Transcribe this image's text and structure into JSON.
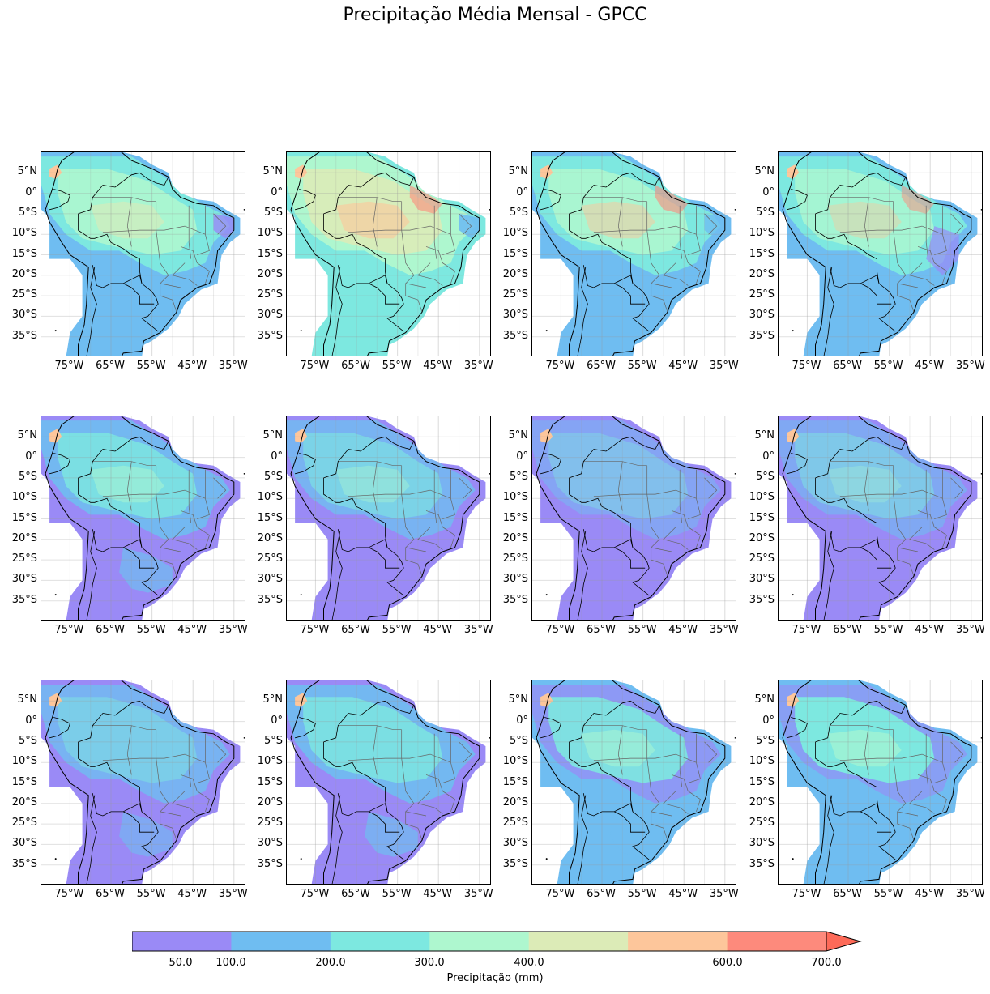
{
  "title": "Precipitação Média Mensal - GPCC",
  "lat_ticks": [
    "5°N",
    "0°",
    "5°S",
    "10°S",
    "15°S",
    "20°S",
    "25°S",
    "30°S",
    "35°S"
  ],
  "lon_ticks": [
    "75°W",
    "65°W",
    "55°W",
    "45°W",
    "35°W"
  ],
  "colorbar": {
    "label": "Precipitação (mm)",
    "tick_labels": [
      "50.0",
      "100.0",
      "200.0",
      "300.0",
      "400.0",
      "600.0",
      "700.0"
    ],
    "colors": [
      "#9a8af6",
      "#6fbdf1",
      "#7de8e0",
      "#aef7cf",
      "#dcebb7",
      "#fdc69b",
      "#fd8a7c",
      "#fd6a58"
    ]
  },
  "panels": [
    {
      "base": "#6fbdf1",
      "zones": [
        [
          0,
          "#7de8e0",
          1.0
        ],
        [
          1,
          "#aef7cf",
          0.9
        ],
        [
          2,
          "#dcebb7",
          0.6
        ],
        [
          4,
          "#9a8af6",
          0.8
        ]
      ]
    },
    {
      "base": "#7de8e0",
      "zones": [
        [
          0,
          "#aef7cf",
          1.0
        ],
        [
          1,
          "#dcebb7",
          0.9
        ],
        [
          2,
          "#fdc69b",
          0.6
        ],
        [
          3,
          "#fd8a7c",
          0.6
        ],
        [
          4,
          "#6fbdf1",
          0.9
        ]
      ]
    },
    {
      "base": "#6fbdf1",
      "zones": [
        [
          0,
          "#7de8e0",
          1.0
        ],
        [
          1,
          "#aef7cf",
          0.9
        ],
        [
          2,
          "#fdc69b",
          0.5
        ],
        [
          3,
          "#fd8a7c",
          0.6
        ],
        [
          4,
          "#6fbdf1",
          0.8
        ]
      ]
    },
    {
      "base": "#6fbdf1",
      "zones": [
        [
          0,
          "#7de8e0",
          1.0
        ],
        [
          1,
          "#aef7cf",
          0.8
        ],
        [
          2,
          "#fdc69b",
          0.4
        ],
        [
          3,
          "#fd8a7c",
          0.5
        ],
        [
          5,
          "#9a8af6",
          0.7
        ]
      ]
    },
    {
      "base": "#9a8af6",
      "zones": [
        [
          0,
          "#6fbdf1",
          0.9
        ],
        [
          1,
          "#7de8e0",
          0.8
        ],
        [
          2,
          "#aef7cf",
          0.5
        ],
        [
          6,
          "#6fbdf1",
          0.7
        ]
      ]
    },
    {
      "base": "#9a8af6",
      "zones": [
        [
          0,
          "#6fbdf1",
          0.8
        ],
        [
          1,
          "#7de8e0",
          0.6
        ],
        [
          2,
          "#aef7cf",
          0.4
        ]
      ]
    },
    {
      "base": "#9a8af6",
      "zones": [
        [
          0,
          "#6fbdf1",
          0.5
        ],
        [
          1,
          "#7de8e0",
          0.4
        ]
      ]
    },
    {
      "base": "#9a8af6",
      "zones": [
        [
          0,
          "#6fbdf1",
          0.6
        ],
        [
          1,
          "#7de8e0",
          0.5
        ],
        [
          2,
          "#aef7cf",
          0.3
        ]
      ]
    },
    {
      "base": "#9a8af6",
      "zones": [
        [
          0,
          "#6fbdf1",
          0.8
        ],
        [
          1,
          "#7de8e0",
          0.5
        ],
        [
          6,
          "#6fbdf1",
          0.6
        ]
      ]
    },
    {
      "base": "#9a8af6",
      "zones": [
        [
          0,
          "#6fbdf1",
          0.9
        ],
        [
          1,
          "#7de8e0",
          0.8
        ],
        [
          6,
          "#6fbdf1",
          0.7
        ]
      ]
    },
    {
      "base": "#6fbdf1",
      "zones": [
        [
          0,
          "#9a8af6",
          0.7
        ],
        [
          1,
          "#7de8e0",
          0.9
        ],
        [
          2,
          "#aef7cf",
          0.5
        ],
        [
          6,
          "#6fbdf1",
          0.9
        ]
      ]
    },
    {
      "base": "#6fbdf1",
      "zones": [
        [
          0,
          "#9a8af6",
          0.6
        ],
        [
          1,
          "#7de8e0",
          1.0
        ],
        [
          2,
          "#aef7cf",
          0.6
        ],
        [
          6,
          "#6fbdf1",
          1.0
        ]
      ]
    }
  ]
}
